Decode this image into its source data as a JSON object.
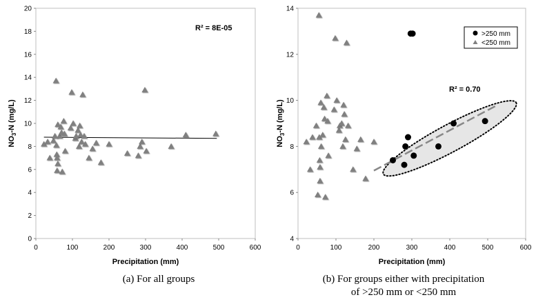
{
  "charts": [
    {
      "id": "a",
      "type": "scatter",
      "caption": "(a) For all groups",
      "xlabel": "Precipitation (mm)",
      "ylabel_main": "NO",
      "ylabel_sub": "3",
      "ylabel_rest": "-N (mg/L)",
      "xlim": [
        0,
        600
      ],
      "ylim": [
        0,
        20
      ],
      "xticks": [
        0,
        100,
        200,
        300,
        400,
        500,
        600
      ],
      "yticks": [
        0,
        2,
        4,
        6,
        8,
        10,
        12,
        14,
        16,
        18,
        20
      ],
      "annotation": "R² = 8E-05",
      "trendline": {
        "x": [
          22,
          495
        ],
        "y": [
          8.8,
          8.7
        ]
      },
      "series": [
        {
          "marker": "triangle",
          "color": "#808080",
          "points": [
            [
              22,
              8.2
            ],
            [
              32,
              8.4
            ],
            [
              38,
              7.0
            ],
            [
              48,
              8.5
            ],
            [
              52,
              8.9
            ],
            [
              55,
              13.7
            ],
            [
              56,
              8.1
            ],
            [
              57,
              7.3
            ],
            [
              58,
              7.0
            ],
            [
              58,
              5.9
            ],
            [
              60,
              9.9
            ],
            [
              60,
              6.5
            ],
            [
              65,
              8.9
            ],
            [
              68,
              9.7
            ],
            [
              70,
              9.2
            ],
            [
              72,
              5.8
            ],
            [
              76,
              10.2
            ],
            [
              78,
              9.1
            ],
            [
              80,
              7.6
            ],
            [
              95,
              9.6
            ],
            [
              98,
              12.7
            ],
            [
              102,
              10.0
            ],
            [
              108,
              8.7
            ],
            [
              110,
              8.9
            ],
            [
              115,
              9.4
            ],
            [
              118,
              8.0
            ],
            [
              120,
              9.8
            ],
            [
              122,
              9.0
            ],
            [
              125,
              8.4
            ],
            [
              128,
              12.5
            ],
            [
              132,
              8.9
            ],
            [
              135,
              8.2
            ],
            [
              145,
              7.0
            ],
            [
              155,
              7.8
            ],
            [
              165,
              8.3
            ],
            [
              178,
              6.6
            ],
            [
              200,
              8.2
            ],
            [
              250,
              7.4
            ],
            [
              280,
              7.2
            ],
            [
              285,
              8.0
            ],
            [
              290,
              8.4
            ],
            [
              298,
              12.9
            ],
            [
              302,
              7.6
            ],
            [
              370,
              8.0
            ],
            [
              410,
              9.0
            ],
            [
              492,
              9.1
            ]
          ]
        }
      ]
    },
    {
      "id": "b",
      "type": "scatter",
      "caption_line1": "(b) For groups either with precipitation",
      "caption_line2": "of >250 mm or <250 mm",
      "xlabel": "Precipitation (mm)",
      "ylabel_main": "NO",
      "ylabel_sub": "3",
      "ylabel_rest": "-N (mg/L)",
      "xlim": [
        0,
        600
      ],
      "ylim": [
        4,
        14
      ],
      "xticks": [
        0,
        100,
        200,
        300,
        400,
        500,
        600
      ],
      "yticks": [
        4,
        6,
        8,
        10,
        12,
        14
      ],
      "annotation": "R² = 0.70",
      "legend_position": "top-right",
      "trendline": {
        "x": [
          200,
          520
        ],
        "y": [
          6.95,
          9.75
        ]
      },
      "series": [
        {
          "name": ">250 mm",
          "marker": "circle",
          "color": "#000000",
          "points": [
            [
              250,
              7.4
            ],
            [
              280,
              7.2
            ],
            [
              283,
              8.0
            ],
            [
              290,
              8.4
            ],
            [
              297,
              12.9
            ],
            [
              302,
              12.9
            ],
            [
              305,
              7.6
            ],
            [
              370,
              8.0
            ],
            [
              410,
              9.0
            ],
            [
              493,
              9.1
            ]
          ]
        },
        {
          "name": "<250 mm",
          "marker": "triangle",
          "color": "#808080",
          "points": [
            [
              22,
              8.2
            ],
            [
              32,
              7.0
            ],
            [
              38,
              8.4
            ],
            [
              48,
              8.9
            ],
            [
              52,
              5.9
            ],
            [
              55,
              13.7
            ],
            [
              56,
              8.4
            ],
            [
              57,
              7.4
            ],
            [
              58,
              7.1
            ],
            [
              58,
              6.5
            ],
            [
              60,
              9.9
            ],
            [
              61,
              8.0
            ],
            [
              65,
              8.5
            ],
            [
              68,
              9.7
            ],
            [
              70,
              9.2
            ],
            [
              72,
              5.8
            ],
            [
              76,
              10.2
            ],
            [
              78,
              9.1
            ],
            [
              80,
              7.6
            ],
            [
              95,
              9.6
            ],
            [
              98,
              12.7
            ],
            [
              102,
              10.0
            ],
            [
              108,
              8.7
            ],
            [
              110,
              8.9
            ],
            [
              115,
              9.0
            ],
            [
              118,
              8.0
            ],
            [
              120,
              9.8
            ],
            [
              122,
              9.4
            ],
            [
              125,
              8.3
            ],
            [
              128,
              12.5
            ],
            [
              132,
              8.9
            ],
            [
              145,
              7.0
            ],
            [
              155,
              7.9
            ],
            [
              165,
              8.3
            ],
            [
              178,
              6.6
            ],
            [
              200,
              8.2
            ]
          ]
        }
      ],
      "ellipse": {
        "center": [
          400,
          8.35
        ],
        "semi_major_x": 175,
        "semi_major_y": 1.55,
        "semi_minor": 0.62
      }
    }
  ]
}
